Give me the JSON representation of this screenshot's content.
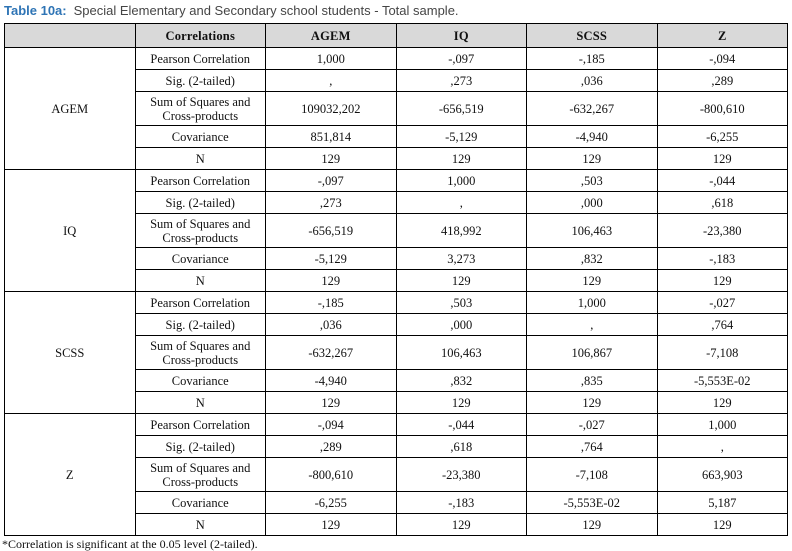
{
  "title": {
    "label": "Table 10a:",
    "text": "Special Elementary and Secondary school students - Total sample."
  },
  "table": {
    "header": [
      "",
      "Correlations",
      "AGEM",
      "IQ",
      "SCSS",
      "Z"
    ],
    "row_labels": [
      "Pearson Correlation",
      "Sig. (2-tailed)",
      "Sum of Squares and Cross-products",
      "Covariance",
      "N"
    ],
    "groups": [
      {
        "name": "AGEM",
        "rows": [
          [
            "1,000",
            "-,097",
            "-,185",
            "-,094"
          ],
          [
            ",",
            ",273",
            ",036",
            ",289"
          ],
          [
            "109032,202",
            "-656,519",
            "-632,267",
            "-800,610"
          ],
          [
            "851,814",
            "-5,129",
            "-4,940",
            "-6,255"
          ],
          [
            "129",
            "129",
            "129",
            "129"
          ]
        ]
      },
      {
        "name": "IQ",
        "rows": [
          [
            "-,097",
            "1,000",
            ",503",
            "-,044"
          ],
          [
            ",273",
            ",",
            ",000",
            ",618"
          ],
          [
            "-656,519",
            "418,992",
            "106,463",
            "-23,380"
          ],
          [
            "-5,129",
            "3,273",
            ",832",
            "-,183"
          ],
          [
            "129",
            "129",
            "129",
            "129"
          ]
        ]
      },
      {
        "name": "SCSS",
        "rows": [
          [
            "-,185",
            ",503",
            "1,000",
            "-,027"
          ],
          [
            ",036",
            ",000",
            ",",
            ",764"
          ],
          [
            "-632,267",
            "106,463",
            "106,867",
            "-7,108"
          ],
          [
            "-4,940",
            ",832",
            ",835",
            "-5,553E-02"
          ],
          [
            "129",
            "129",
            "129",
            "129"
          ]
        ]
      },
      {
        "name": "Z",
        "rows": [
          [
            "-,094",
            "-,044",
            "-,027",
            "1,000"
          ],
          [
            ",289",
            ",618",
            ",764",
            ","
          ],
          [
            "-800,610",
            "-23,380",
            "-7,108",
            "663,903"
          ],
          [
            "-6,255",
            "-,183",
            "-5,553E-02",
            "5,187"
          ],
          [
            "129",
            "129",
            "129",
            "129"
          ]
        ]
      }
    ],
    "footnote": "*Correlation is significant at the 0.05 level (2-tailed)."
  },
  "colors": {
    "title_accent": "#2E74B5",
    "title_text": "#454545",
    "header_bg": "#D9D9D9",
    "border": "#000000"
  }
}
